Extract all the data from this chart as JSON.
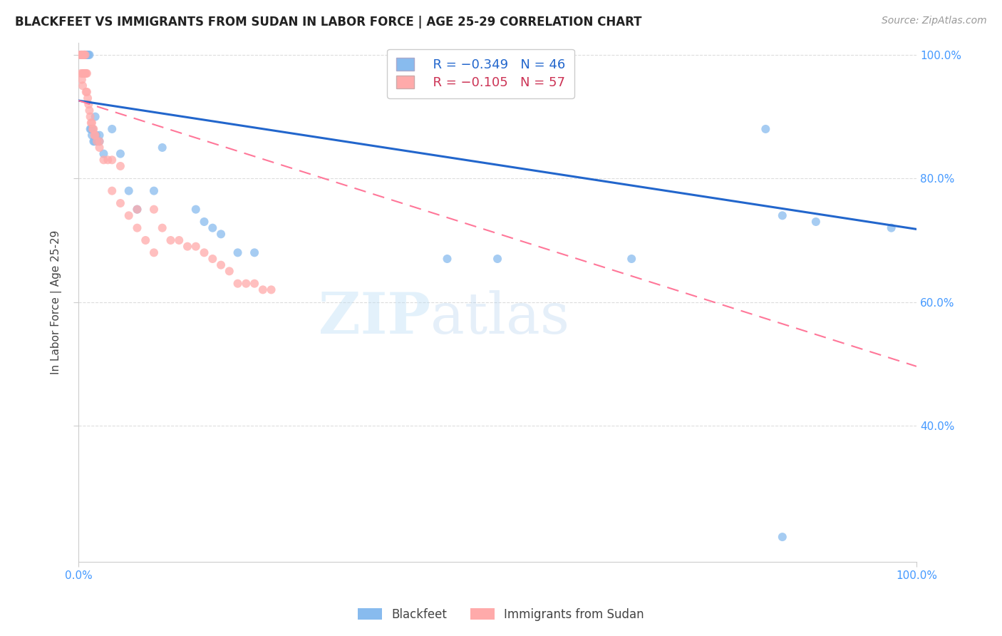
{
  "title": "BLACKFEET VS IMMIGRANTS FROM SUDAN IN LABOR FORCE | AGE 25-29 CORRELATION CHART",
  "source": "Source: ZipAtlas.com",
  "ylabel": "In Labor Force | Age 25-29",
  "watermark": "ZIPatlas",
  "legend_blue_r": "R = −0.349",
  "legend_blue_n": "N = 46",
  "legend_pink_r": "R = −0.105",
  "legend_pink_n": "N = 57",
  "xmin": 0.0,
  "xmax": 1.0,
  "ymin": 0.18,
  "ymax": 1.02,
  "xtick_positions": [
    0.0,
    1.0
  ],
  "xtick_labels": [
    "0.0%",
    "100.0%"
  ],
  "ytick_positions": [
    0.4,
    0.6,
    0.8,
    1.0
  ],
  "ytick_labels": [
    "40.0%",
    "60.0%",
    "80.0%",
    "100.0%"
  ],
  "blue_color": "#88BBEE",
  "pink_color": "#FFAAAA",
  "blue_line_color": "#2266CC",
  "pink_line_color": "#FF7799",
  "background": "#FFFFFF",
  "grid_color": "#DDDDDD",
  "blue_x": [
    0.003,
    0.004,
    0.005,
    0.006,
    0.007,
    0.007,
    0.008,
    0.008,
    0.009,
    0.01,
    0.01,
    0.011,
    0.012,
    0.013,
    0.014,
    0.015,
    0.016,
    0.017,
    0.018,
    0.019,
    0.02,
    0.021,
    0.022,
    0.025,
    0.025,
    0.03,
    0.04,
    0.05,
    0.06,
    0.07,
    0.09,
    0.1,
    0.14,
    0.15,
    0.16,
    0.17,
    0.19,
    0.21,
    0.44,
    0.5,
    0.66,
    0.82,
    0.84,
    0.88,
    0.97,
    0.84
  ],
  "blue_y": [
    1.0,
    1.0,
    1.0,
    1.0,
    1.0,
    1.0,
    1.0,
    1.0,
    1.0,
    1.0,
    1.0,
    1.0,
    1.0,
    1.0,
    0.88,
    0.88,
    0.87,
    0.88,
    0.86,
    0.86,
    0.9,
    0.87,
    0.86,
    0.86,
    0.87,
    0.84,
    0.88,
    0.84,
    0.78,
    0.75,
    0.78,
    0.85,
    0.75,
    0.73,
    0.72,
    0.71,
    0.68,
    0.68,
    0.67,
    0.67,
    0.67,
    0.88,
    0.74,
    0.73,
    0.72,
    0.22
  ],
  "pink_x": [
    0.002,
    0.003,
    0.003,
    0.004,
    0.004,
    0.005,
    0.005,
    0.005,
    0.006,
    0.006,
    0.007,
    0.007,
    0.008,
    0.008,
    0.009,
    0.009,
    0.01,
    0.01,
    0.011,
    0.012,
    0.013,
    0.014,
    0.015,
    0.016,
    0.017,
    0.018,
    0.019,
    0.02,
    0.022,
    0.025,
    0.025,
    0.03,
    0.035,
    0.04,
    0.05,
    0.07,
    0.09,
    0.1,
    0.11,
    0.12,
    0.13,
    0.14,
    0.15,
    0.16,
    0.17,
    0.18,
    0.19,
    0.2,
    0.21,
    0.22,
    0.23,
    0.04,
    0.05,
    0.06,
    0.07,
    0.08,
    0.09
  ],
  "pink_y": [
    1.0,
    1.0,
    0.97,
    1.0,
    0.96,
    1.0,
    0.97,
    0.95,
    1.0,
    0.97,
    1.0,
    0.97,
    1.0,
    0.97,
    0.97,
    0.94,
    0.97,
    0.94,
    0.93,
    0.92,
    0.91,
    0.9,
    0.89,
    0.89,
    0.88,
    0.88,
    0.87,
    0.87,
    0.86,
    0.86,
    0.85,
    0.83,
    0.83,
    0.83,
    0.82,
    0.75,
    0.75,
    0.72,
    0.7,
    0.7,
    0.69,
    0.69,
    0.68,
    0.67,
    0.66,
    0.65,
    0.63,
    0.63,
    0.63,
    0.62,
    0.62,
    0.78,
    0.76,
    0.74,
    0.72,
    0.7,
    0.68
  ],
  "blue_trend_x0": 0.0,
  "blue_trend_x1": 1.0,
  "blue_trend_y0": 0.926,
  "blue_trend_y1": 0.718,
  "pink_trend_x0": 0.0,
  "pink_trend_x1": 1.0,
  "pink_trend_y0": 0.926,
  "pink_trend_y1": 0.496
}
